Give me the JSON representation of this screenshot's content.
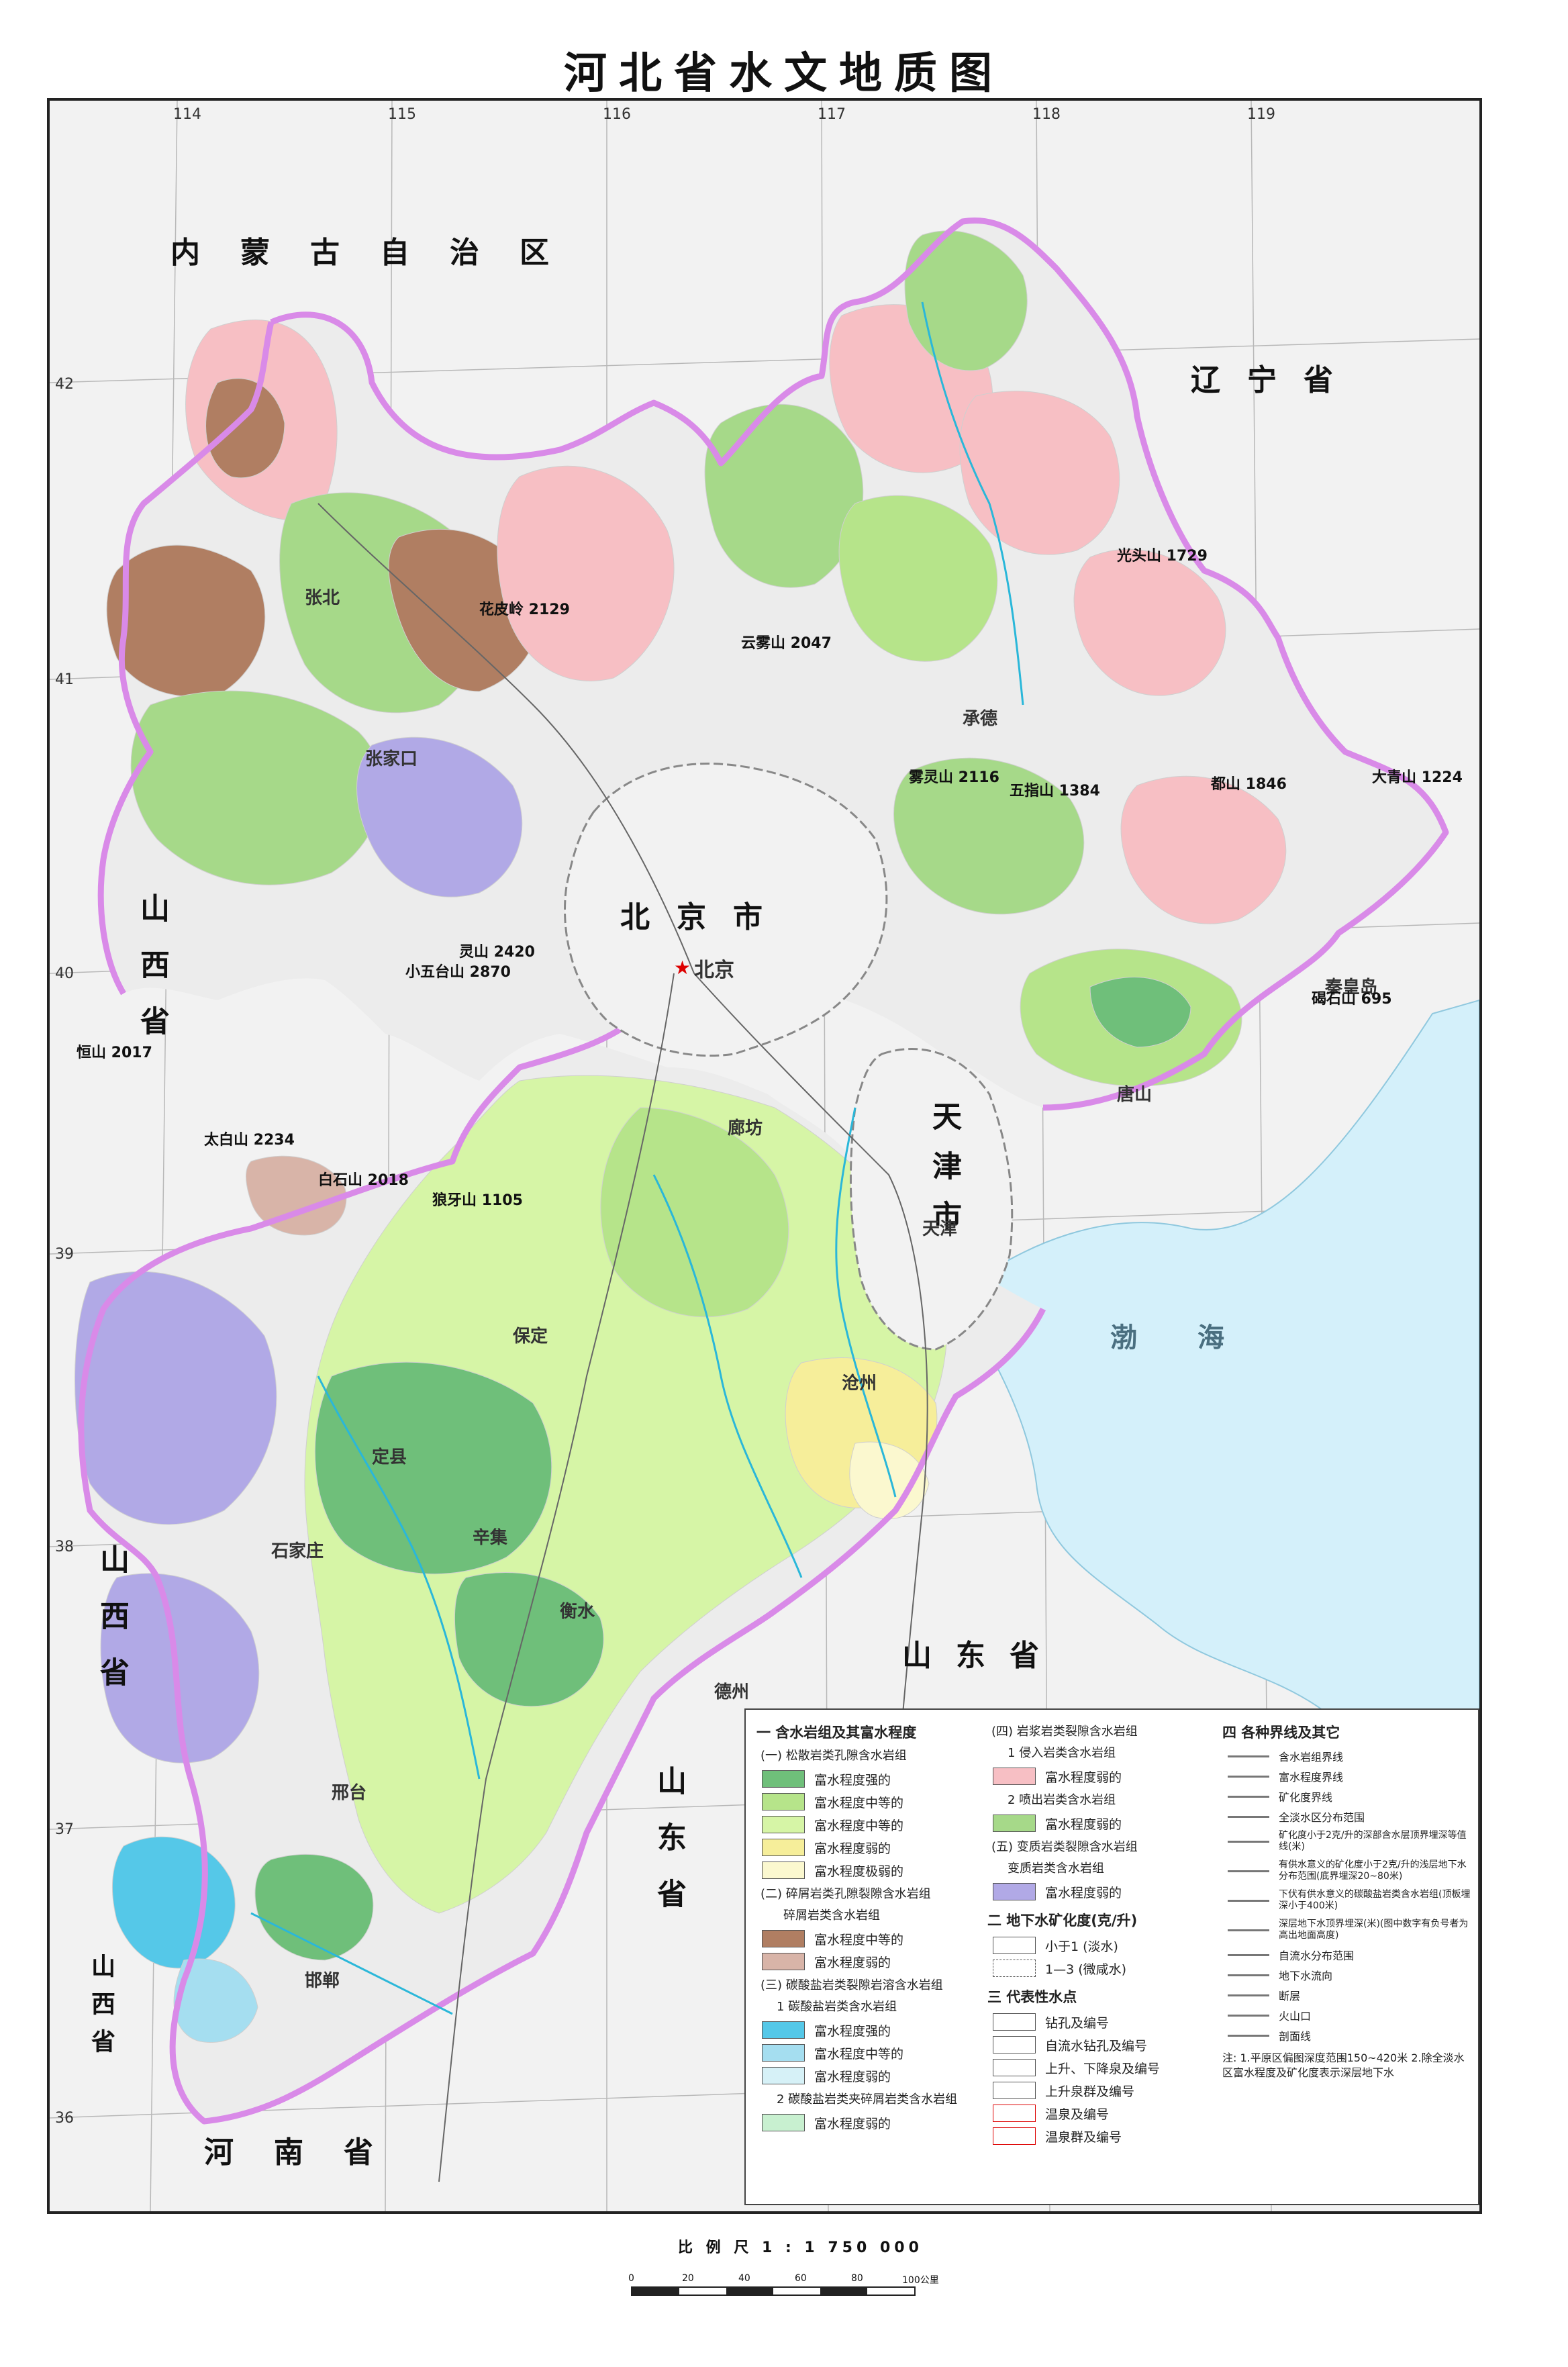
{
  "title": "河北省水文地质图",
  "regions": {
    "inner_mongolia": "内蒙古自治区",
    "liaoning": "辽宁省",
    "beijing": "北京市",
    "tianjin": "天津市",
    "shandong": "山东省",
    "henan": "河南省",
    "bohai": "渤海",
    "shanxi_1": "山西省",
    "shanxi_2": "山西省",
    "shanxi_3": "山西省",
    "shandong_2": "山东省"
  },
  "cities": {
    "beijing_city": "北京",
    "tianjin_city": "天津",
    "chengde": "承德",
    "zhangjiakou": "张家口",
    "baoding": "保定",
    "shijiazhuang": "石家庄",
    "tangshan": "唐山",
    "qinhuangdao": "秦皇岛",
    "langfang": "廊坊",
    "cangzhou": "沧州",
    "hengshui": "衡水",
    "xingtai": "邢台",
    "handan": "邯郸",
    "zhangbei": "张北",
    "dingzhou": "定县",
    "xinji": "辛集",
    "dezhou": "德州"
  },
  "peaks": {
    "p1": "雾灵山 2116",
    "p2": "云雾山 2047",
    "p3": "小五台山 2870",
    "p4": "灵山 2420",
    "p5": "白石山 2018",
    "p6": "太白山 2234",
    "p7": "花皮岭 2129",
    "p8": "都山 1846",
    "p9": "大青山 1224",
    "p10": "光头山 1729",
    "p11": "五指山 1384",
    "p12": "狼牙山 1105",
    "p13": "恒山 2017",
    "p14": "碣石山 695"
  },
  "lon_labels": [
    "114",
    "115",
    "116",
    "117",
    "118",
    "119"
  ],
  "lat_labels": [
    "42",
    "41",
    "40",
    "39",
    "38",
    "37",
    "36"
  ],
  "legend": {
    "sec1": "一 含水岩组及其富水程度",
    "sec1_a": "(一) 松散岩类孔隙含水岩组",
    "sec1_a_items": [
      "富水程度强的",
      "富水程度中等的",
      "富水程度中等的",
      "富水程度弱的",
      "富水程度极弱的"
    ],
    "sec1_b": "(二) 碎屑岩类孔隙裂隙含水岩组",
    "sec1_b_sub": "碎屑岩类含水岩组",
    "sec1_b_items": [
      "富水程度中等的",
      "富水程度弱的"
    ],
    "sec1_c": "(三) 碳酸盐岩类裂隙岩溶含水岩组",
    "sec1_c_sub": "1 碳酸盐岩类含水岩组",
    "sec1_c_items": [
      "富水程度强的",
      "富水程度中等的",
      "富水程度弱的"
    ],
    "sec1_c_sub2": "2 碳酸盐岩类夹碎屑岩类含水岩组",
    "sec1_c_items2": [
      "富水程度弱的"
    ],
    "sec4_title": "(四) 岩浆岩类裂隙含水岩组",
    "sec4_sub1": "1 侵入岩类含水岩组",
    "sec4_items1": [
      "富水程度弱的"
    ],
    "sec4_sub2": "2 喷出岩类含水岩组",
    "sec4_items2": [
      "富水程度弱的"
    ],
    "sec5_title": "(五) 变质岩类裂隙含水岩组",
    "sec5_sub": "变质岩类含水岩组",
    "sec5_items": [
      "富水程度弱的"
    ],
    "sec2": "二 地下水矿化度(克/升)",
    "sec2_items": [
      "小于1 (淡水)",
      "1—3 (微咸水)"
    ],
    "sec3": "三 代表性水点",
    "sec3_items": [
      "钻孔及编号",
      "自流水钻孔及编号",
      "上升、下降泉及编号",
      "上升泉群及编号",
      "温泉及编号",
      "温泉群及编号"
    ],
    "sec4": "四 各种界线及其它",
    "sec4_lines": [
      "含水岩组界线",
      "富水程度界线",
      "矿化度界线",
      "全淡水区分布范围",
      "矿化度小于2克/升的深部含水层顶界埋深等值线(米)",
      "有供水意义的矿化度小于2克/升的浅层地下水分布范围(底界埋深20~80米)",
      "下伏有供水意义的碳酸盐岩类含水岩组(顶板埋深小于400米)",
      "深层地下水顶界埋深(米)(图中数字有负号者为高出地面高度)",
      "自流水分布范围",
      "地下水流向",
      "断层",
      "火山口",
      "剖面线"
    ],
    "notes": "注: 1.平原区偏图深度范围150~420米  2.除全淡水区富水程度及矿化度表示深层地下水"
  },
  "colors": {
    "strong_loose": "#6fbf7a",
    "medium_loose": "#b6e48a",
    "medium_loose2": "#d6f5a6",
    "weak_loose": "#f6ee9a",
    "very_weak_loose": "#fbf8cf",
    "clastic_medium": "#b07e62",
    "clastic_weak": "#d8b4a8",
    "carbonate_strong": "#55c8e8",
    "carbonate_medium": "#a5def0",
    "carbonate_weak": "#d6f1f7",
    "carbonate_clastic": "#c8f0d0",
    "intrusive": "#f7bfc4",
    "volcanic": "#a6d989",
    "metamorphic": "#b1a9e6",
    "boundary": "#d98ae8",
    "sea": "#d4f0fa"
  },
  "scale": {
    "label": "比 例 尺   1 : 1 750 000",
    "ticks": [
      "0",
      "20",
      "40",
      "60",
      "80",
      "100公里"
    ]
  }
}
